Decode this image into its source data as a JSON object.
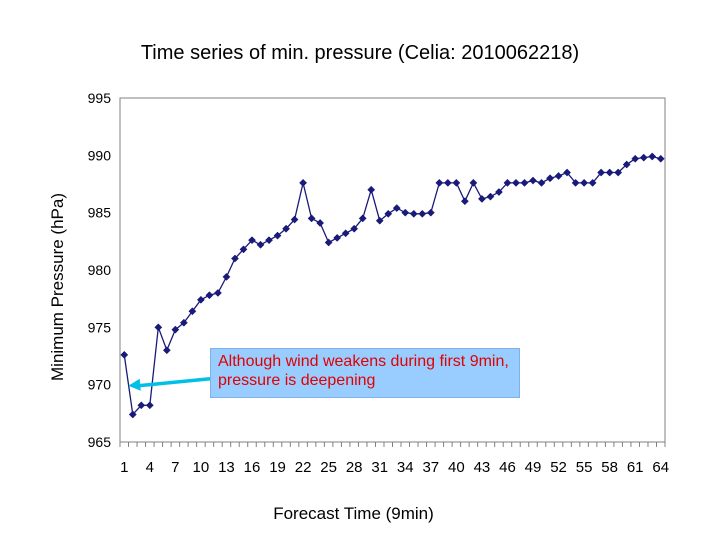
{
  "chart_data": {
    "type": "line",
    "title": "Time series of min. pressure (Celia: 2010062218)",
    "xlabel": "Forecast Time (9min)",
    "ylabel": "Minimum Pressure (hPa)",
    "ylim": [
      965,
      995
    ],
    "yticks": [
      965,
      970,
      975,
      980,
      985,
      990,
      995
    ],
    "xticks": [
      1,
      4,
      7,
      10,
      13,
      16,
      19,
      22,
      25,
      28,
      31,
      34,
      37,
      40,
      43,
      46,
      49,
      52,
      55,
      58,
      61,
      64
    ],
    "x": [
      1,
      2,
      3,
      4,
      5,
      6,
      7,
      8,
      9,
      10,
      11,
      12,
      13,
      14,
      15,
      16,
      17,
      18,
      19,
      20,
      21,
      22,
      23,
      24,
      25,
      26,
      27,
      28,
      29,
      30,
      31,
      32,
      33,
      34,
      35,
      36,
      37,
      38,
      39,
      40,
      41,
      42,
      43,
      44,
      45,
      46,
      47,
      48,
      49,
      50,
      51,
      52,
      53,
      54,
      55,
      56,
      57,
      58,
      59,
      60,
      61,
      62,
      63,
      64
    ],
    "series": [
      {
        "name": "Minimum Pressure",
        "color": "#1a1a7a",
        "values": [
          972.6,
          967.4,
          968.2,
          968.2,
          975.0,
          973.0,
          974.8,
          975.4,
          976.4,
          977.4,
          977.8,
          978.0,
          979.4,
          981.0,
          981.8,
          982.6,
          982.2,
          982.6,
          983.0,
          983.6,
          984.4,
          987.6,
          984.5,
          984.1,
          982.4,
          982.8,
          983.2,
          983.6,
          984.5,
          987.0,
          984.3,
          984.9,
          985.4,
          985.0,
          984.9,
          984.9,
          985.0,
          987.6,
          987.6,
          987.6,
          986.0,
          987.6,
          986.2,
          986.4,
          986.8,
          987.6,
          987.6,
          987.6,
          987.8,
          987.6,
          988.0,
          988.2,
          988.5,
          987.6,
          987.6,
          987.6,
          988.5,
          988.5,
          988.5,
          989.2,
          989.7,
          989.8,
          989.9,
          989.7
        ]
      }
    ],
    "grid": false,
    "annotation": {
      "text": "Although wind weakens during first 9min, pressure is deepening",
      "arrow_target_x": 1,
      "arrow_target_y": 970.6,
      "box_color": "#99ccff",
      "text_color": "#e00000",
      "arrow_color": "#00c0e8"
    }
  }
}
